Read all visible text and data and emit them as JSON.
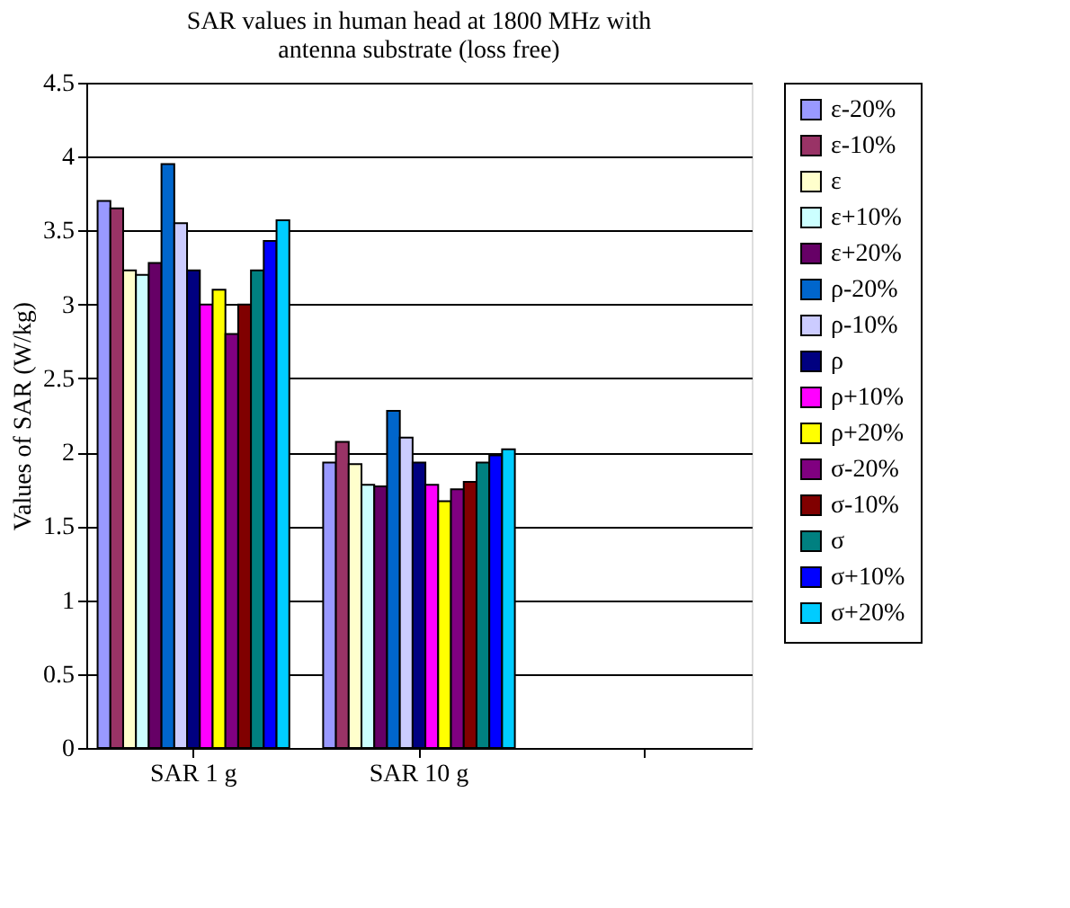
{
  "chart_data": {
    "type": "bar",
    "title": "SAR values in human head at 1800 MHz with antenna substrate (loss free)",
    "ylabel": "Values of SAR (W/kg)",
    "categories": [
      "SAR 1 g",
      "SAR 10 g",
      null
    ],
    "series": [
      {
        "name": "ε-20%",
        "color": "#9999ff",
        "values": [
          3.7,
          1.93,
          null
        ]
      },
      {
        "name": "ε-10%",
        "color": "#993366",
        "values": [
          3.65,
          2.07,
          null
        ]
      },
      {
        "name": "ε",
        "color": "#ffffcc",
        "values": [
          3.23,
          1.92,
          null
        ]
      },
      {
        "name": "ε+10%",
        "color": "#ccffff",
        "values": [
          3.2,
          1.78,
          null
        ]
      },
      {
        "name": "ε+20%",
        "color": "#660066",
        "values": [
          3.28,
          1.77,
          null
        ]
      },
      {
        "name": "ρ-20%",
        "color": "#0066cc",
        "values": [
          3.95,
          2.28,
          null
        ]
      },
      {
        "name": "ρ-10%",
        "color": "#ccccff",
        "values": [
          3.55,
          2.1,
          null
        ]
      },
      {
        "name": "ρ",
        "color": "#000080",
        "values": [
          3.23,
          1.93,
          null
        ]
      },
      {
        "name": "ρ+10%",
        "color": "#ff00ff",
        "values": [
          3.0,
          1.78,
          null
        ]
      },
      {
        "name": "ρ+20%",
        "color": "#ffff00",
        "values": [
          3.1,
          1.67,
          null
        ]
      },
      {
        "name": "σ-20%",
        "color": "#800080",
        "values": [
          2.8,
          1.75,
          null
        ]
      },
      {
        "name": "σ-10%",
        "color": "#800000",
        "values": [
          3.0,
          1.8,
          null
        ]
      },
      {
        "name": "σ",
        "color": "#008080",
        "values": [
          3.23,
          1.93,
          null
        ]
      },
      {
        "name": "σ+10%",
        "color": "#0000ff",
        "values": [
          3.43,
          1.98,
          null
        ]
      },
      {
        "name": "σ+20%",
        "color": "#00ccff",
        "values": [
          3.57,
          2.02,
          null
        ]
      }
    ],
    "ylim": [
      0,
      4.5
    ],
    "yticks": [
      0,
      0.5,
      1,
      1.5,
      2,
      2.5,
      3,
      3.5,
      4,
      4.5
    ],
    "grid": "y",
    "legend": "right"
  }
}
